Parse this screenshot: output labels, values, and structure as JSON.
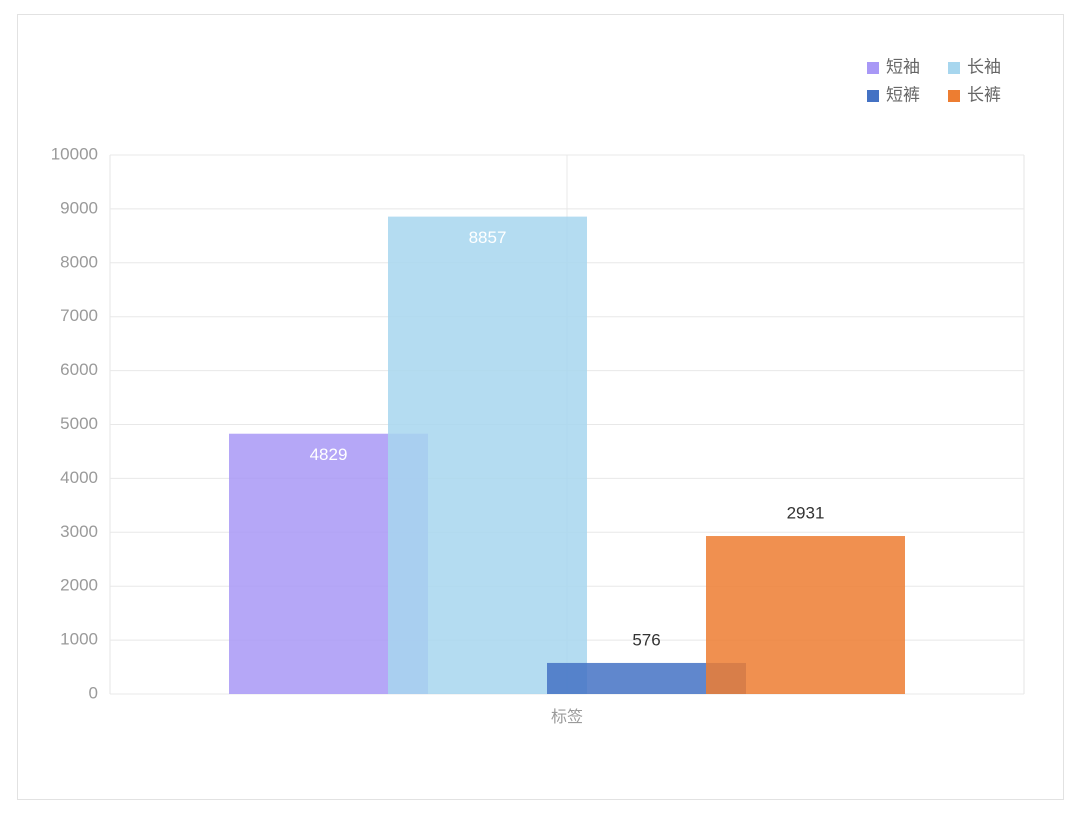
{
  "chart_data": {
    "type": "bar",
    "categories": [
      "标签"
    ],
    "series": [
      {
        "name": "短袖",
        "color": "#a898f6",
        "values": [
          4829
        ]
      },
      {
        "name": "长袖",
        "color": "#a7d6ee",
        "values": [
          8857
        ]
      },
      {
        "name": "短裤",
        "color": "#4472c4",
        "values": [
          576
        ]
      },
      {
        "name": "长裤",
        "color": "#ed7d31",
        "values": [
          2931
        ]
      }
    ],
    "ylim": [
      0,
      10000
    ],
    "yticks": [
      0,
      1000,
      2000,
      3000,
      4000,
      5000,
      6000,
      7000,
      8000,
      9000,
      10000
    ],
    "grid": true,
    "legend": "top-right"
  }
}
